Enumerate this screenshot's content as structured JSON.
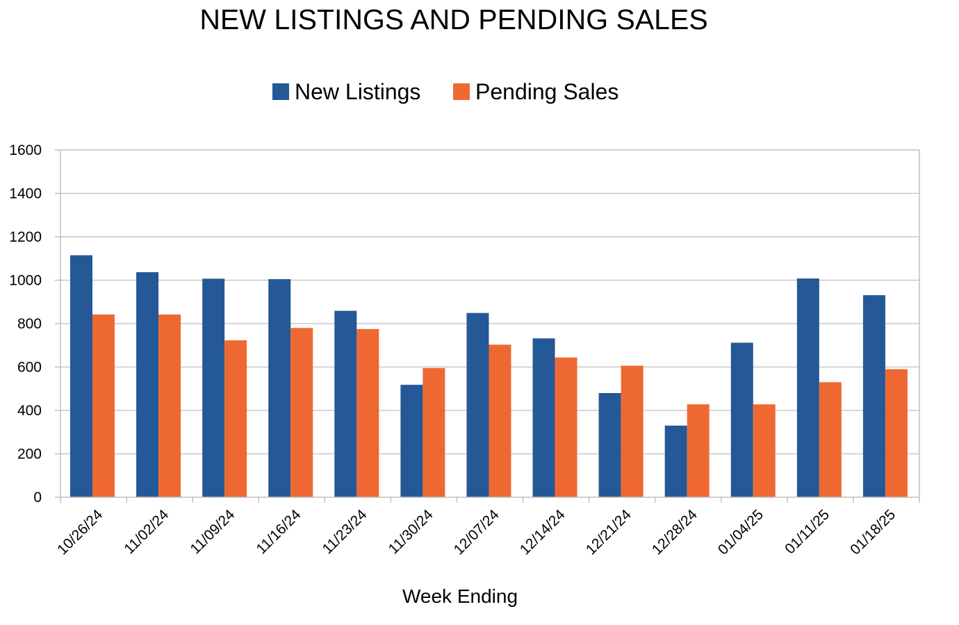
{
  "chart_data": {
    "type": "bar",
    "title": "NEW LISTINGS AND PENDING SALES",
    "xlabel": "Week Ending",
    "ylabel": "",
    "ylim": [
      0,
      1600
    ],
    "yticks": [
      0,
      200,
      400,
      600,
      800,
      1000,
      1200,
      1400,
      1600
    ],
    "grid": true,
    "legend_position": "top-center",
    "categories": [
      "10/26/24",
      "11/02/24",
      "11/09/24",
      "11/16/24",
      "11/23/24",
      "11/30/24",
      "12/07/24",
      "12/14/24",
      "12/21/24",
      "12/28/24",
      "01/04/25",
      "01/11/25",
      "01/18/25"
    ],
    "series": [
      {
        "name": "New Listings",
        "color": "#255896",
        "values": [
          1115,
          1037,
          1007,
          1005,
          859,
          518,
          849,
          732,
          480,
          330,
          712,
          1008,
          931
        ]
      },
      {
        "name": "Pending Sales",
        "color": "#EE6932",
        "values": [
          842,
          842,
          723,
          780,
          775,
          595,
          703,
          644,
          606,
          428,
          428,
          530,
          590
        ]
      }
    ]
  }
}
